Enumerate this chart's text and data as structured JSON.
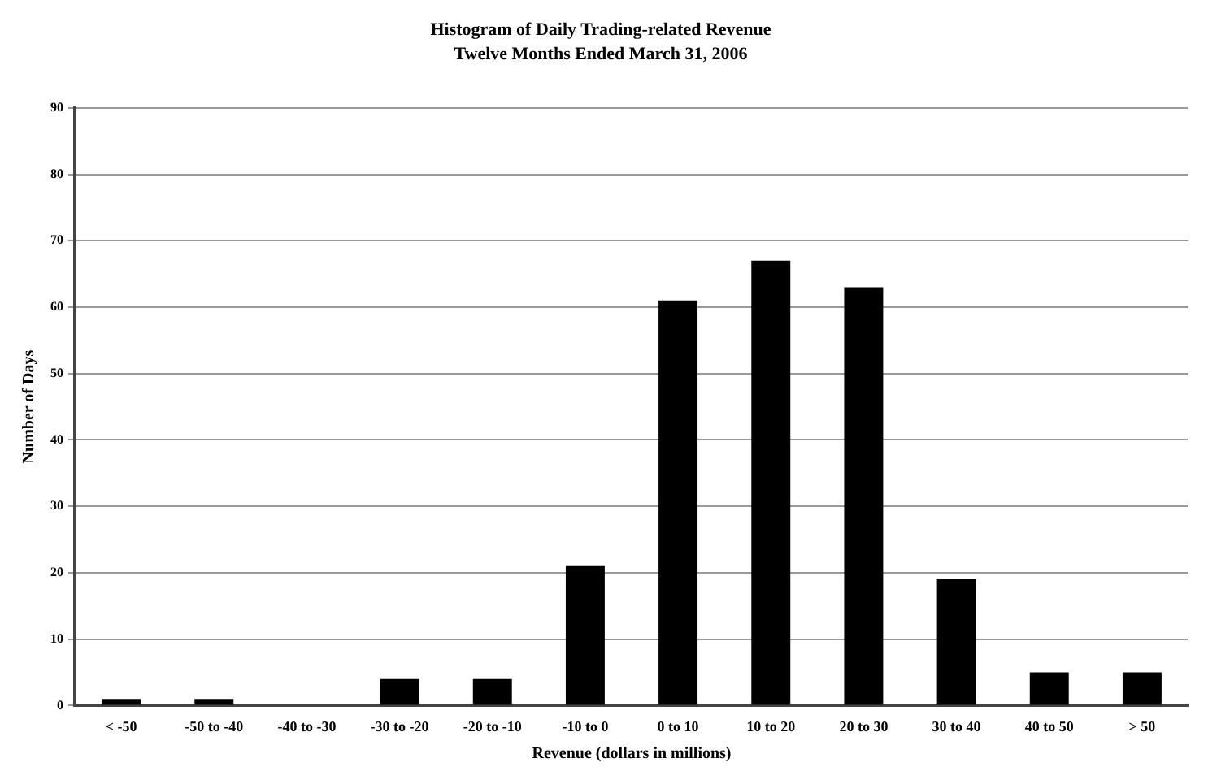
{
  "chart_data": {
    "type": "bar",
    "title": "Histogram of Daily Trading-related Revenue",
    "subtitle": "Twelve Months Ended March 31, 2006",
    "xlabel": "Revenue (dollars in millions)",
    "ylabel": "Number of Days",
    "categories": [
      "< -50",
      "-50 to -40",
      "-40 to -30",
      "-30 to -20",
      "-20 to -10",
      "-10 to 0",
      "0 to 10",
      "10 to 20",
      "20 to 30",
      "30 to 40",
      "40 to 50",
      "> 50"
    ],
    "values": [
      1,
      1,
      0,
      4,
      4,
      21,
      61,
      67,
      63,
      19,
      5,
      5
    ],
    "color": "#000000",
    "ylim": [
      0,
      90
    ],
    "yticks": [
      0,
      10,
      20,
      30,
      40,
      50,
      60,
      70,
      80,
      90
    ],
    "grid": "y",
    "legend": false
  }
}
